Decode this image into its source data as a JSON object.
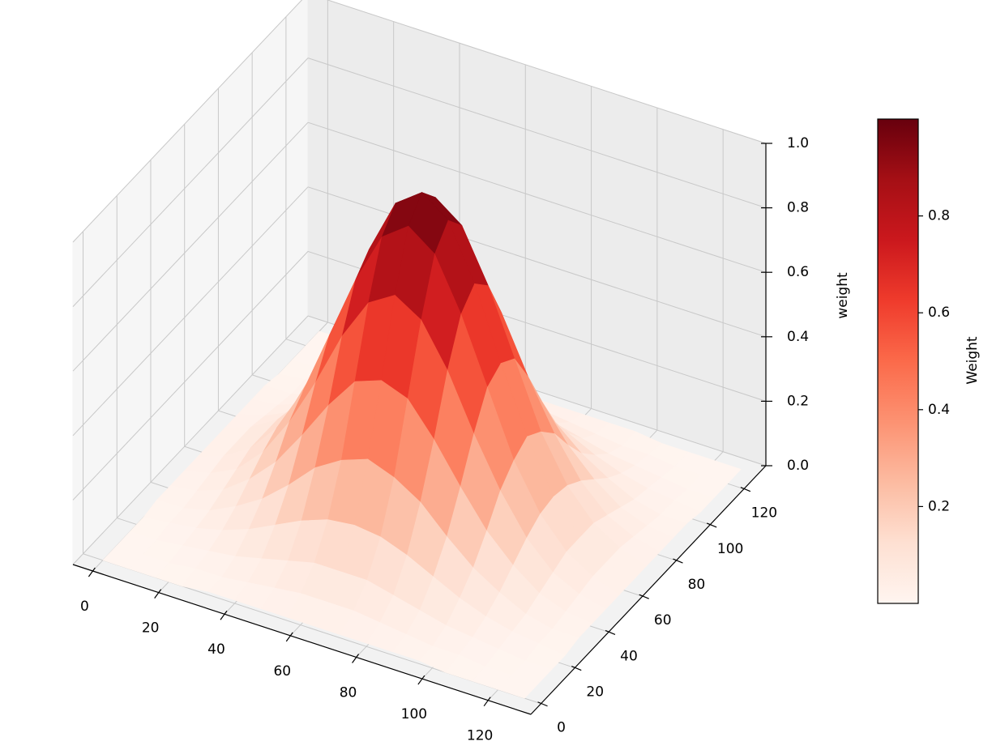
{
  "chart_data": {
    "type": "surface3d",
    "zlabel": "weight",
    "colorbar_label": "Weight",
    "x": [
      0,
      8,
      16,
      24,
      32,
      40,
      48,
      56,
      64,
      72,
      80,
      88,
      96,
      104,
      112,
      120,
      128
    ],
    "y": [
      0,
      8,
      16,
      24,
      32,
      40,
      48,
      56,
      64,
      72,
      80,
      88,
      96,
      104,
      112,
      120,
      128
    ],
    "z": [
      [
        0,
        0,
        0,
        0,
        0.01,
        0.01,
        0.01,
        0.01,
        0.01,
        0.01,
        0.01,
        0.01,
        0.01,
        0,
        0,
        0,
        0
      ],
      [
        0,
        0,
        0,
        0.01,
        0.01,
        0.02,
        0.03,
        0.04,
        0.04,
        0.04,
        0.03,
        0.02,
        0.01,
        0.01,
        0,
        0,
        0
      ],
      [
        0,
        0,
        0.01,
        0.02,
        0.03,
        0.05,
        0.07,
        0.09,
        0.09,
        0.09,
        0.07,
        0.05,
        0.03,
        0.02,
        0.01,
        0,
        0
      ],
      [
        0,
        0.01,
        0.02,
        0.04,
        0.07,
        0.11,
        0.15,
        0.18,
        0.19,
        0.18,
        0.15,
        0.11,
        0.07,
        0.04,
        0.02,
        0.01,
        0
      ],
      [
        0.01,
        0.01,
        0.03,
        0.07,
        0.12,
        0.19,
        0.27,
        0.32,
        0.35,
        0.32,
        0.27,
        0.19,
        0.12,
        0.07,
        0.03,
        0.01,
        0.01
      ],
      [
        0.01,
        0.02,
        0.05,
        0.11,
        0.19,
        0.3,
        0.42,
        0.52,
        0.55,
        0.52,
        0.42,
        0.3,
        0.19,
        0.11,
        0.05,
        0.02,
        0.01
      ],
      [
        0.01,
        0.03,
        0.07,
        0.15,
        0.27,
        0.42,
        0.59,
        0.72,
        0.77,
        0.72,
        0.59,
        0.42,
        0.27,
        0.15,
        0.07,
        0.03,
        0.01
      ],
      [
        0.01,
        0.04,
        0.09,
        0.18,
        0.32,
        0.52,
        0.72,
        0.88,
        0.94,
        0.88,
        0.72,
        0.52,
        0.32,
        0.18,
        0.09,
        0.04,
        0.01
      ],
      [
        0.01,
        0.04,
        0.09,
        0.19,
        0.35,
        0.55,
        0.77,
        0.94,
        1,
        0.94,
        0.77,
        0.55,
        0.35,
        0.19,
        0.09,
        0.04,
        0.01
      ],
      [
        0.01,
        0.04,
        0.09,
        0.18,
        0.32,
        0.52,
        0.72,
        0.88,
        0.94,
        0.88,
        0.72,
        0.52,
        0.32,
        0.18,
        0.09,
        0.04,
        0.01
      ],
      [
        0.01,
        0.03,
        0.07,
        0.15,
        0.27,
        0.42,
        0.59,
        0.72,
        0.77,
        0.72,
        0.59,
        0.42,
        0.27,
        0.15,
        0.07,
        0.03,
        0.01
      ],
      [
        0.01,
        0.02,
        0.05,
        0.11,
        0.19,
        0.3,
        0.42,
        0.52,
        0.55,
        0.52,
        0.42,
        0.3,
        0.19,
        0.11,
        0.05,
        0.02,
        0.01
      ],
      [
        0.01,
        0.01,
        0.03,
        0.07,
        0.12,
        0.19,
        0.27,
        0.32,
        0.35,
        0.32,
        0.27,
        0.19,
        0.12,
        0.07,
        0.03,
        0.01,
        0.01
      ],
      [
        0,
        0.01,
        0.02,
        0.04,
        0.07,
        0.11,
        0.15,
        0.18,
        0.19,
        0.18,
        0.15,
        0.11,
        0.07,
        0.04,
        0.02,
        0.01,
        0
      ],
      [
        0,
        0,
        0.01,
        0.02,
        0.03,
        0.05,
        0.07,
        0.09,
        0.09,
        0.09,
        0.07,
        0.05,
        0.03,
        0.02,
        0.01,
        0,
        0
      ],
      [
        0,
        0,
        0,
        0.01,
        0.01,
        0.02,
        0.03,
        0.04,
        0.04,
        0.04,
        0.03,
        0.02,
        0.01,
        0.01,
        0,
        0,
        0
      ],
      [
        0,
        0,
        0,
        0,
        0.01,
        0.01,
        0.01,
        0.01,
        0.01,
        0.01,
        0.01,
        0.01,
        0.01,
        0,
        0,
        0,
        0
      ]
    ],
    "xlim": [
      -6,
      133
    ],
    "ylim": [
      -6,
      133
    ],
    "zlim": [
      0,
      1
    ],
    "xticks": [
      0,
      20,
      40,
      60,
      80,
      100,
      120
    ],
    "yticks": [
      0,
      20,
      40,
      60,
      80,
      100,
      120
    ],
    "zticks": [
      {
        "value": 0,
        "label": "0.0"
      },
      0.2,
      0.4,
      0.6,
      0.8,
      {
        "value": 1,
        "label": "1.0"
      }
    ],
    "clim": [
      0,
      1
    ],
    "cticks": [
      0.2,
      0.4,
      0.6,
      0.8
    ],
    "colormap": [
      "#fff5f0",
      "#fee0d2",
      "#fcbba1",
      "#fc9272",
      "#fb6a4a",
      "#ef3b2c",
      "#cb181d",
      "#a50f15",
      "#67000d"
    ],
    "grid": true
  }
}
